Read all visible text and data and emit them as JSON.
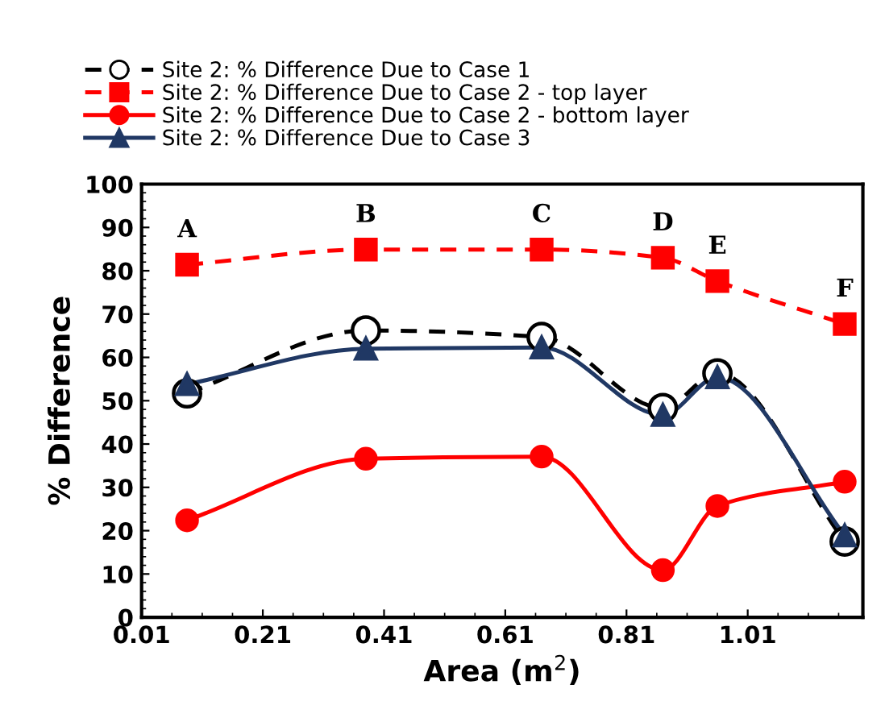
{
  "chart_data": {
    "type": "line",
    "xlabel": "Area (m$^{2}$)",
    "ylabel": "% Difference",
    "xlim": [
      0.01,
      1.2
    ],
    "xticks": [
      0.01,
      0.21,
      0.41,
      0.61,
      0.81,
      1.01
    ],
    "ylim": [
      0,
      100
    ],
    "yticks": [
      0,
      10,
      20,
      30,
      40,
      50,
      60,
      70,
      80,
      90,
      100
    ],
    "grid": false,
    "legend": "top",
    "x": [
      0.085,
      0.38,
      0.67,
      0.87,
      0.96,
      1.17
    ],
    "series": [
      {
        "name": "Site 2: % Difference Due to Case 1",
        "color": "#000000",
        "marker": "circle",
        "line_style": "dashed",
        "values": [
          51.7,
          66.2,
          64.7,
          48.3,
          56.3,
          17.5
        ]
      },
      {
        "name": "Site 2: % Difference Due to Case 2 - top layer",
        "color": "#ff0000",
        "marker": "square",
        "line_style": "dashed",
        "values": [
          81.4,
          84.9,
          84.9,
          83.0,
          77.6,
          67.7
        ]
      },
      {
        "name": "Site 2: % Difference Due to Case 2 - bottom layer",
        "color": "#ff0000",
        "marker": "circle",
        "line_style": "solid",
        "values": [
          22.4,
          36.6,
          37.1,
          10.9,
          25.7,
          31.3
        ]
      },
      {
        "name": "Site 2: % Difference Due to Case 3",
        "color": "#203864",
        "marker": "triangle",
        "line_style": "solid",
        "values": [
          53.8,
          62.0,
          62.3,
          46.7,
          55.4,
          18.9
        ]
      }
    ],
    "annotations": [
      {
        "text": "A",
        "x": 0.085,
        "y": 81.4
      },
      {
        "text": "B",
        "x": 0.38,
        "y": 84.9
      },
      {
        "text": "C",
        "x": 0.67,
        "y": 84.9
      },
      {
        "text": "D",
        "x": 0.87,
        "y": 83.0
      },
      {
        "text": "E",
        "x": 0.96,
        "y": 77.6
      },
      {
        "text": "F",
        "x": 1.17,
        "y": 67.7
      }
    ]
  }
}
